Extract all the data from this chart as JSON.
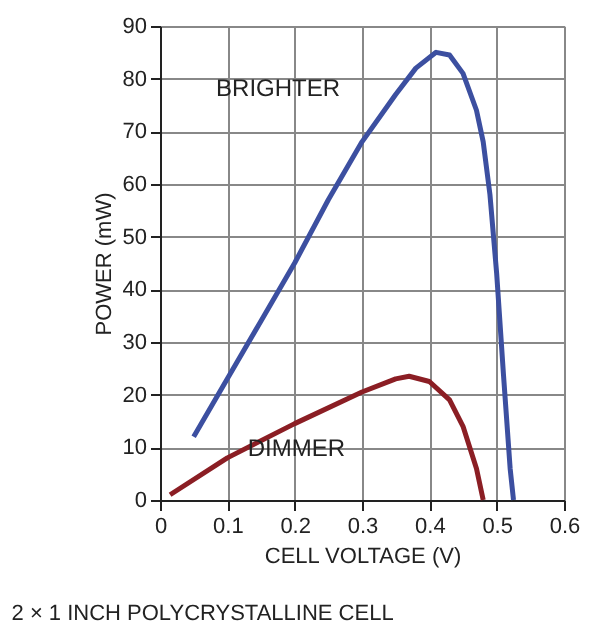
{
  "chart_data": {
    "type": "line",
    "xlabel": "CELL VOLTAGE (V)",
    "ylabel": "POWER (mW)",
    "xlim": [
      0,
      0.6
    ],
    "xticks": [
      0,
      0.1,
      0.2,
      0.3,
      0.4,
      0.5,
      0.6
    ],
    "ylim": [
      0,
      90
    ],
    "yticks": [
      0,
      10,
      20,
      30,
      40,
      50,
      60,
      70,
      80,
      90
    ],
    "grid": true,
    "legend": false,
    "marker": "none",
    "line_style": "solid",
    "series": [
      {
        "name": "BRIGHTER",
        "color": "#3c4fa0",
        "x": [
          0.05,
          0.1,
          0.15,
          0.2,
          0.25,
          0.3,
          0.35,
          0.38,
          0.41,
          0.43,
          0.45,
          0.47,
          0.48,
          0.49,
          0.5,
          0.51,
          0.52,
          0.525
        ],
        "values": [
          12,
          23,
          34,
          45,
          57,
          68,
          77,
          82,
          85,
          84.5,
          81,
          74,
          68,
          58,
          43,
          24,
          6,
          0
        ]
      },
      {
        "name": "DIMMER",
        "color": "#8b1e24",
        "x": [
          0.015,
          0.1,
          0.2,
          0.3,
          0.35,
          0.37,
          0.4,
          0.43,
          0.45,
          0.47,
          0.48
        ],
        "values": [
          1,
          8,
          14.5,
          20.5,
          23,
          23.5,
          22.5,
          19,
          14,
          6,
          0
        ]
      }
    ],
    "annotations": [
      "2 × 1 INCH POLYCRYSTALLINE CELL"
    ]
  }
}
